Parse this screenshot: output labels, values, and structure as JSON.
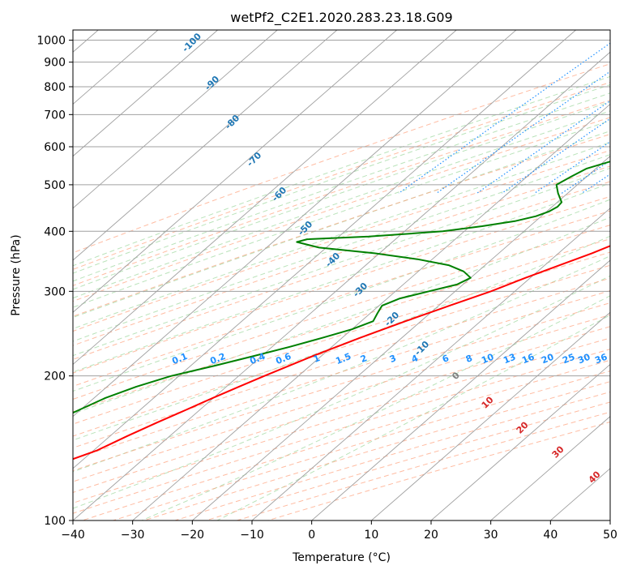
{
  "chart_data": {
    "type": "line",
    "title": "wetPf2_C2E1.2020.283.23.18.G09",
    "xlabel": "Temperature (°C)",
    "ylabel": "Pressure (hPa)",
    "xlim": [
      -40,
      50
    ],
    "ylim": [
      1050,
      100
    ],
    "y_scale": "log",
    "grid": true,
    "x_ticks": [
      -40,
      -30,
      -20,
      -10,
      0,
      10,
      20,
      30,
      40,
      50
    ],
    "y_ticks": [
      100,
      200,
      300,
      400,
      500,
      600,
      700,
      800,
      900,
      1000
    ],
    "colors": {
      "temperature": "#ff0000",
      "dewpoint": "#008000",
      "isotherm": "#a0a0a0",
      "dry_adiabat": "#ffa07a",
      "moist_adiabat": "#66c266",
      "mixing_ratio": "#1e90ff",
      "isobar": "#a0a0a0"
    },
    "series": [
      {
        "key": "temperature",
        "pressure": [
          960,
          940,
          920,
          900,
          880,
          850,
          820,
          800,
          780,
          760,
          740,
          720,
          700,
          680,
          650,
          620,
          600,
          570,
          550,
          530,
          510,
          490,
          470,
          450,
          420,
          400,
          380,
          360,
          340,
          320,
          300,
          280,
          260,
          240,
          220,
          200,
          190,
          180,
          170,
          160,
          150,
          140,
          130,
          125,
          120,
          115,
          110,
          105,
          100
        ],
        "values": [
          25.6,
          24.3,
          24.0,
          24.4,
          24.2,
          23.7,
          23.9,
          23.8,
          23.8,
          23.6,
          23.9,
          24.3,
          23.6,
          23.1,
          22.4,
          20.8,
          19.8,
          17.6,
          15.9,
          14.5,
          13.2,
          11.4,
          9.2,
          7.2,
          3.5,
          1.2,
          -1.9,
          -4.4,
          -7.5,
          -10.8,
          -14.0,
          -18.2,
          -22.6,
          -27.0,
          -31.4,
          -35.7,
          -37.9,
          -40.1,
          -42.3,
          -44.7,
          -47.1,
          -49.4,
          -53.7,
          -56.6,
          -59.1,
          -60.7,
          -61.8,
          -63.3,
          -64.7
        ]
      },
      {
        "key": "dewpoint",
        "pressure": [
          960,
          940,
          920,
          900,
          880,
          850,
          820,
          800,
          780,
          760,
          740,
          720,
          700,
          680,
          660,
          640,
          620,
          600,
          580,
          560,
          540,
          520,
          500,
          480,
          460,
          450,
          440,
          430,
          420,
          410,
          400,
          390,
          385,
          380,
          370,
          360,
          350,
          340,
          330,
          320,
          310,
          300,
          290,
          280,
          270,
          260,
          250,
          240,
          230,
          220,
          210,
          200,
          190,
          180,
          170,
          160,
          150,
          140,
          130,
          120,
          115,
          110,
          105,
          100
        ],
        "values": [
          21.0,
          20.8,
          19.0,
          17.4,
          17.0,
          15.3,
          11.9,
          5.1,
          2.0,
          -0.8,
          -2.5,
          -5.2,
          -10.0,
          -14.3,
          -15.9,
          -15.4,
          -14.1,
          -14.8,
          -17.7,
          -18.8,
          -21.6,
          -22.6,
          -23.5,
          -21.6,
          -19.3,
          -19.1,
          -19.6,
          -20.9,
          -23.5,
          -28.0,
          -33.6,
          -45.0,
          -54.8,
          -56.0,
          -51.2,
          -40.8,
          -32.5,
          -26.1,
          -22.4,
          -20.0,
          -21.0,
          -24.4,
          -27.9,
          -29.5,
          -28.8,
          -28.0,
          -30.0,
          -33.3,
          -37.0,
          -41.3,
          -46.0,
          -51.3,
          -55.1,
          -58.1,
          -60.2,
          -62.4,
          -65.3,
          -68.5,
          -71.5,
          -73.0,
          -74.0,
          -73.8,
          -73.2,
          -72.4
        ]
      }
    ],
    "dry_adiabat_labels": [
      "-100",
      "-90",
      "-80",
      "-70",
      "-60",
      "-50",
      "-40",
      "-30",
      "-20",
      "-10"
    ],
    "mixing_ratio_labels": [
      "0.1",
      "0.2",
      "0.4",
      "0.6",
      "1",
      "1.5",
      "2",
      "3",
      "4",
      "6",
      "8",
      "10",
      "13",
      "16",
      "20",
      "25",
      "30",
      "36"
    ],
    "moist_adiabat_labels": [
      "0",
      "10",
      "20",
      "30",
      "40"
    ]
  }
}
